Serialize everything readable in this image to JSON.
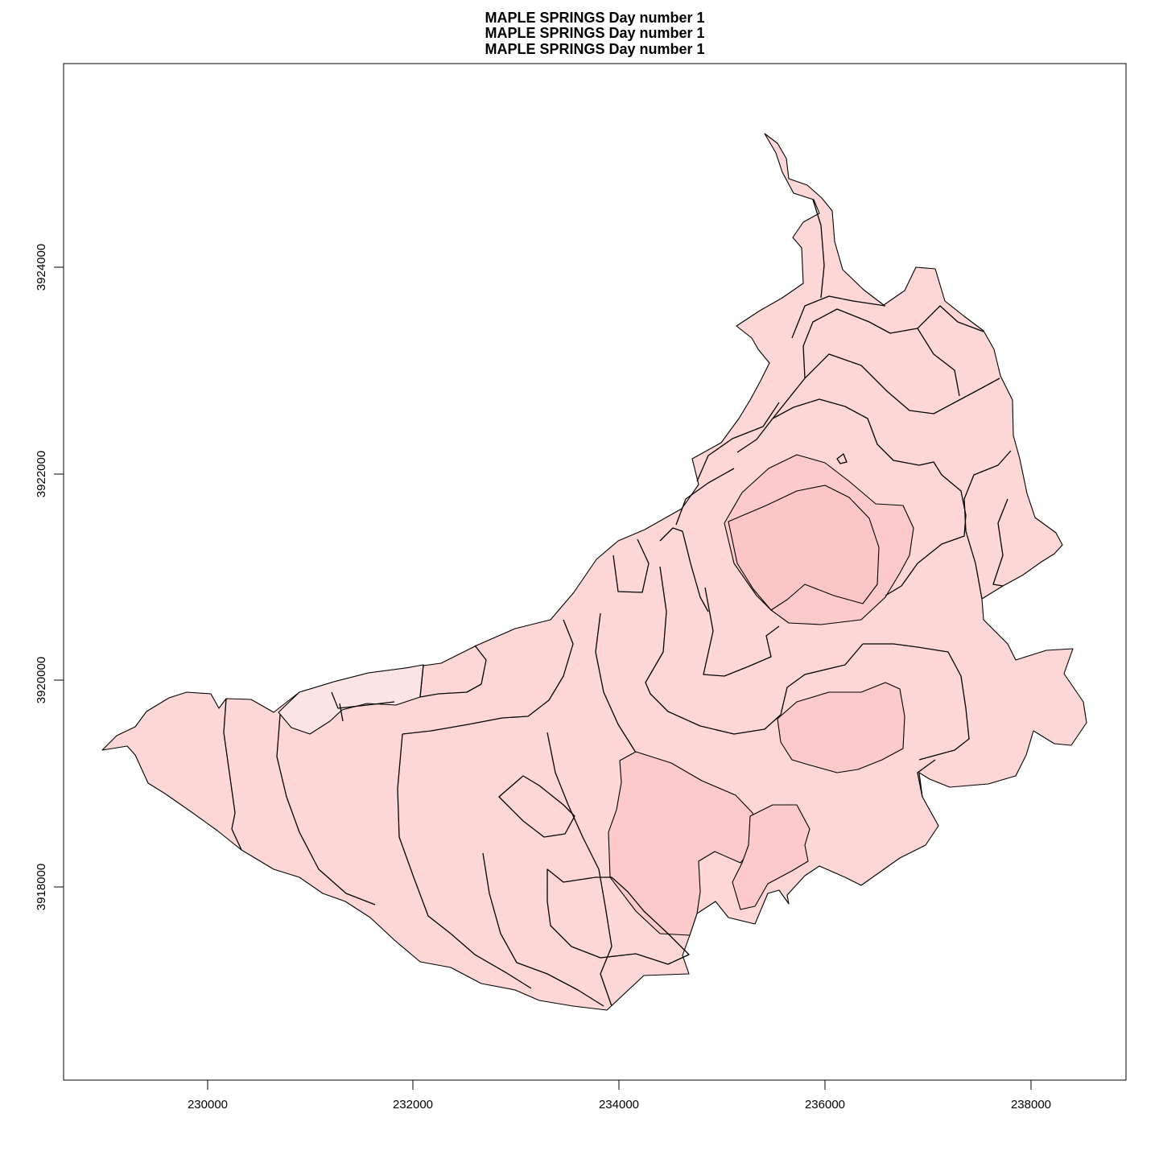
{
  "title_lines": [
    "MAPLE SPRINGS   Day number 1",
    "MAPLE SPRINGS   Day number 1",
    "MAPLE SPRINGS   Day number 1"
  ],
  "chart_data": {
    "type": "map",
    "x_ticks": [
      "230000",
      "232000",
      "234000",
      "236000",
      "238000"
    ],
    "y_ticks": [
      "3918000",
      "3920000",
      "3922000",
      "3924000"
    ],
    "xlim": [
      228600,
      238950
    ],
    "ylim": [
      3915960,
      3925880
    ],
    "grid": false,
    "legend": "none",
    "colors": {
      "zone_fill_light": "#fde4e4",
      "zone_fill_mid": "#fdd6d6",
      "zone_fill_deep": "#fccaca",
      "outline": "#000000"
    }
  }
}
